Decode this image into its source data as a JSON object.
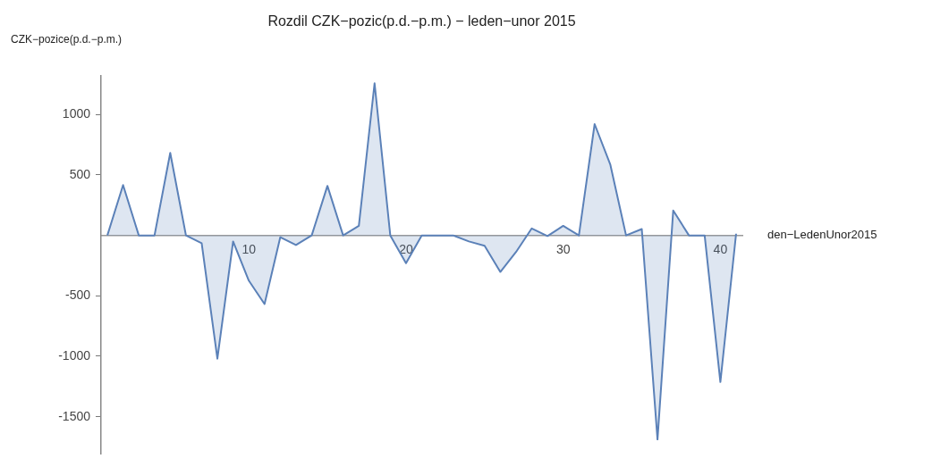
{
  "chart_data": {
    "type": "area",
    "title": "Rozdil CZK−pozic(p.d.−p.m.) − leden−unor 2015",
    "xlabel": "den−LedenUnor2015",
    "ylabel": "CZK−pozice(p.d.−p.m.)",
    "x": [
      1,
      2,
      3,
      4,
      5,
      6,
      7,
      8,
      9,
      10,
      11,
      12,
      13,
      14,
      15,
      16,
      17,
      18,
      19,
      20,
      21,
      22,
      23,
      24,
      25,
      26,
      27,
      28,
      29,
      30,
      31,
      32,
      33,
      34,
      35,
      36,
      37,
      38,
      39,
      40,
      41
    ],
    "series": [
      {
        "color": "#5b81b8",
        "values": [
          0,
          417,
          0,
          0,
          683,
          0,
          -65,
          -1020,
          -50,
          -374,
          -568,
          -15,
          -80,
          0,
          410,
          0,
          79,
          1259,
          0,
          -230,
          0,
          0,
          0,
          -50,
          -86,
          -302,
          -137,
          58,
          -5,
          79,
          0,
          921,
          585,
          0,
          53,
          -1688,
          206,
          0,
          0,
          -1213,
          14
        ]
      }
    ],
    "xlim": [
      0.6,
      41.4
    ],
    "xticks": [
      10,
      20,
      30,
      40
    ],
    "ylim": [
      -1810,
      1320
    ],
    "yticks": [
      -1500,
      -1000,
      -500,
      500,
      1000
    ],
    "grid": false,
    "legend": false,
    "marker": "none",
    "line_style": "solid"
  }
}
